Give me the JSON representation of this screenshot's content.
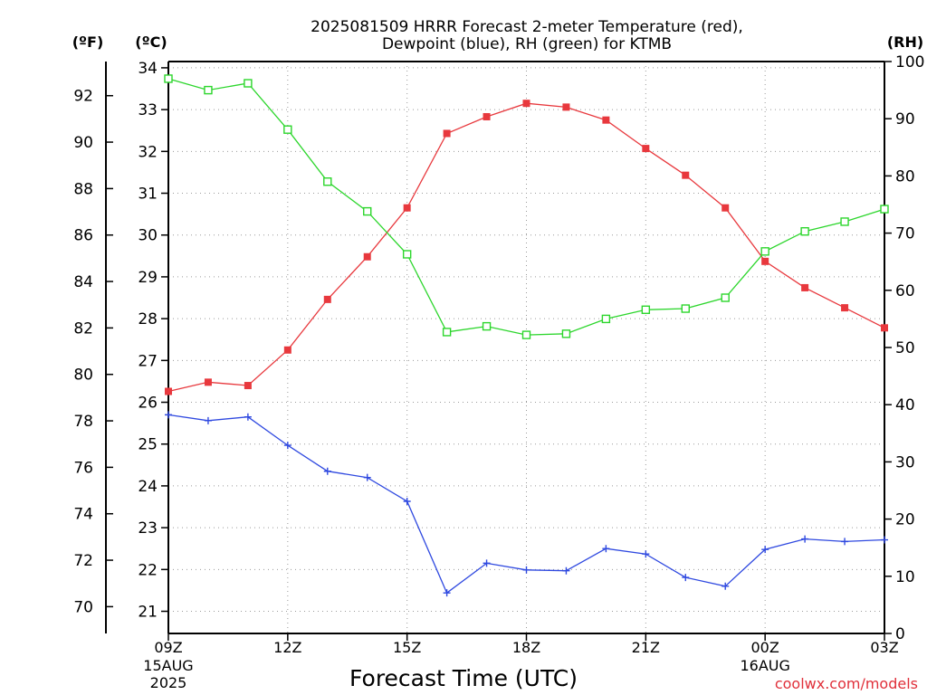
{
  "chart_data": {
    "type": "line",
    "title": "2025081509 HRRR Forecast 2-meter Temperature (red),",
    "subtitle": "Dewpoint (blue), RH (green) for KTMB",
    "xlabel": "Forecast Time (UTC)",
    "credit": "coolwx.com/models",
    "units": {
      "f": "(ºF)",
      "c": "(ºC)",
      "rh": "(RH)"
    },
    "left_axis_f": {
      "ticks": [
        "70",
        "72",
        "74",
        "76",
        "78",
        "80",
        "82",
        "84",
        "86",
        "88",
        "90",
        "92"
      ]
    },
    "left_axis_c": {
      "ticks": [
        "21",
        "22",
        "23",
        "24",
        "25",
        "26",
        "27",
        "28",
        "29",
        "30",
        "31",
        "32",
        "33",
        "34"
      ],
      "ylim": [
        20.47,
        34.15
      ]
    },
    "right_axis_rh": {
      "ticks": [
        "0",
        "10",
        "20",
        "30",
        "40",
        "50",
        "60",
        "70",
        "80",
        "90",
        "100"
      ],
      "ylim": [
        0,
        100
      ]
    },
    "x_ticks": [
      {
        "hour": 0,
        "label": "09Z",
        "date": "15AUG",
        "year": "2025"
      },
      {
        "hour": 3,
        "label": "12Z"
      },
      {
        "hour": 6,
        "label": "15Z"
      },
      {
        "hour": 9,
        "label": "18Z"
      },
      {
        "hour": 12,
        "label": "21Z"
      },
      {
        "hour": 15,
        "label": "00Z",
        "date": "16AUG"
      },
      {
        "hour": 18,
        "label": "03Z"
      }
    ],
    "grid": true,
    "series": [
      {
        "name": "Temperature",
        "color": "#e8383d",
        "axis": "c",
        "marker": "filled-square",
        "hours": [
          0,
          1,
          2,
          3,
          4,
          5,
          6,
          7,
          8,
          9,
          10,
          11,
          12,
          13,
          14,
          15,
          16,
          17,
          18
        ],
        "values": [
          26.26,
          26.48,
          26.4,
          27.25,
          28.46,
          29.48,
          30.65,
          32.43,
          32.83,
          33.15,
          33.06,
          32.75,
          32.07,
          31.43,
          30.65,
          29.37,
          28.74,
          28.26,
          27.78
        ]
      },
      {
        "name": "Dewpoint",
        "color": "#2f49e0",
        "axis": "c",
        "marker": "plus",
        "hours": [
          0,
          1,
          2,
          3,
          4,
          5,
          6,
          7,
          8,
          9,
          10,
          11,
          12,
          13,
          14,
          15,
          16,
          17,
          18
        ],
        "values": [
          25.7,
          25.56,
          25.65,
          24.97,
          24.35,
          24.2,
          23.63,
          21.44,
          22.15,
          21.99,
          21.97,
          22.5,
          22.37,
          21.81,
          21.6,
          22.48,
          22.73,
          22.67,
          22.71
        ]
      },
      {
        "name": "RH",
        "color": "#2cd62c",
        "axis": "rh",
        "marker": "open-square",
        "hours": [
          0,
          1,
          2,
          3,
          4,
          5,
          6,
          7,
          8,
          9,
          10,
          11,
          12,
          13,
          14,
          15,
          16,
          17,
          18
        ],
        "values": [
          97.0,
          95.0,
          96.2,
          88.1,
          79.0,
          73.8,
          66.3,
          52.7,
          53.7,
          52.2,
          52.4,
          55.0,
          56.6,
          56.8,
          58.7,
          66.8,
          70.3,
          72.0,
          74.2
        ]
      }
    ]
  }
}
